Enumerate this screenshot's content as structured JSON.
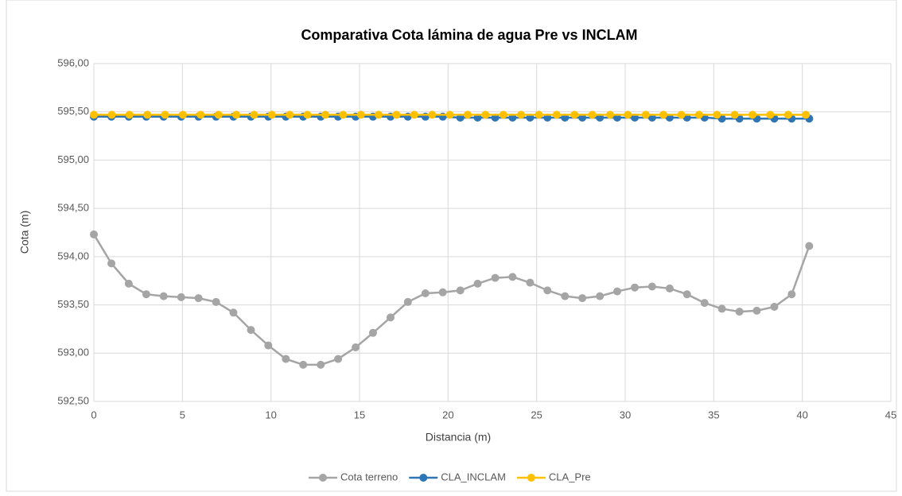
{
  "chart_data": {
    "type": "line",
    "title": "Comparativa Cota lámina de agua Pre vs INCLAM",
    "xlabel": "Distancia (m)",
    "ylabel": "Cota (m)",
    "x": [
      0,
      0.99,
      1.97,
      2.96,
      3.94,
      4.93,
      5.91,
      6.9,
      7.88,
      8.87,
      9.85,
      10.84,
      11.82,
      12.81,
      13.79,
      14.78,
      15.76,
      16.75,
      17.73,
      18.72,
      19.7,
      20.69,
      21.67,
      22.66,
      23.64,
      24.63,
      25.61,
      26.6,
      27.58,
      28.57,
      29.55,
      30.54,
      31.52,
      32.51,
      33.49,
      34.48,
      35.46,
      36.45,
      37.43,
      38.42,
      39.4,
      40.39
    ],
    "series": [
      {
        "name": "Cota terreno",
        "color": "#a5a5a5",
        "values": [
          594.23,
          593.93,
          593.72,
          593.61,
          593.59,
          593.58,
          593.57,
          593.53,
          593.42,
          593.24,
          593.08,
          592.94,
          592.88,
          592.88,
          592.94,
          593.06,
          593.21,
          593.37,
          593.53,
          593.62,
          593.63,
          593.65,
          593.72,
          593.78,
          593.79,
          593.73,
          593.65,
          593.59,
          593.57,
          593.59,
          593.64,
          593.68,
          593.69,
          593.67,
          593.61,
          593.52,
          593.46,
          593.43,
          593.44,
          593.48,
          593.61,
          594.11
        ]
      },
      {
        "name": "CLA_INCLAM",
        "color": "#2e75b6",
        "values": [
          595.45,
          595.45,
          595.45,
          595.45,
          595.45,
          595.45,
          595.45,
          595.45,
          595.45,
          595.45,
          595.45,
          595.45,
          595.45,
          595.45,
          595.45,
          595.45,
          595.45,
          595.45,
          595.45,
          595.45,
          595.45,
          595.44,
          595.44,
          595.44,
          595.44,
          595.44,
          595.44,
          595.44,
          595.44,
          595.44,
          595.44,
          595.44,
          595.44,
          595.44,
          595.44,
          595.44,
          595.43,
          595.43,
          595.43,
          595.43,
          595.43,
          595.43
        ]
      },
      {
        "name": "CLA_Pre",
        "color": "#ffc000",
        "x": [
          0,
          1.01,
          2.01,
          3.02,
          4.02,
          5.03,
          6.03,
          7.04,
          8.04,
          9.05,
          10.05,
          11.06,
          12.06,
          13.07,
          14.07,
          15.08,
          16.08,
          17.09,
          18.09,
          19.1,
          20.1,
          21.11,
          22.11,
          23.12,
          24.12,
          25.13,
          26.13,
          27.14,
          28.14,
          29.15,
          30.15,
          31.16,
          32.16,
          33.17,
          34.17,
          35.18,
          36.18,
          37.19,
          38.19,
          39.2,
          40.2
        ],
        "values": [
          595.47,
          595.47,
          595.47,
          595.47,
          595.47,
          595.47,
          595.47,
          595.47,
          595.47,
          595.47,
          595.47,
          595.47,
          595.47,
          595.47,
          595.47,
          595.47,
          595.47,
          595.47,
          595.47,
          595.47,
          595.47,
          595.47,
          595.47,
          595.47,
          595.47,
          595.47,
          595.47,
          595.47,
          595.47,
          595.47,
          595.47,
          595.47,
          595.47,
          595.47,
          595.47,
          595.47,
          595.47,
          595.47,
          595.47,
          595.47,
          595.47
        ]
      }
    ],
    "xlim": [
      0,
      45
    ],
    "xticks": [
      0,
      5,
      10,
      15,
      20,
      25,
      30,
      35,
      40,
      45
    ],
    "ylim": [
      592.5,
      596
    ],
    "yticks": [
      {
        "value": 592.5,
        "label": "592,50"
      },
      {
        "value": 593,
        "label": "593,00"
      },
      {
        "value": 593.5,
        "label": "593,50"
      },
      {
        "value": 594,
        "label": "594,00"
      },
      {
        "value": 594.5,
        "label": "594,50"
      },
      {
        "value": 595,
        "label": "595,00"
      },
      {
        "value": 595.5,
        "label": "595,50"
      },
      {
        "value": 596,
        "label": "596,00"
      }
    ],
    "grid": true,
    "legend": "bottom"
  }
}
